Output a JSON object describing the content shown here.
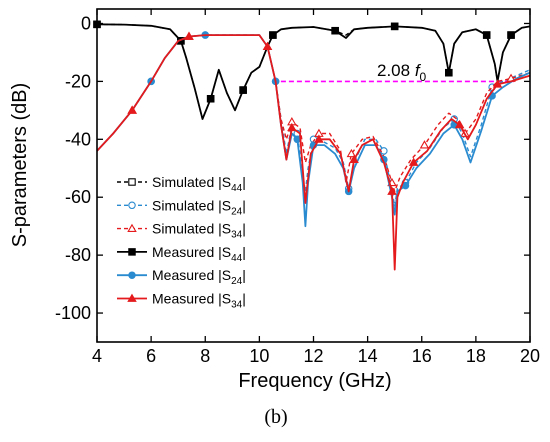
{
  "chart_data": {
    "type": "line",
    "xlabel": "Frequency (GHz)",
    "ylabel": "S-parameters (dB)",
    "xlim": [
      4,
      20
    ],
    "ylim": [
      -110,
      5
    ],
    "xticks": [
      4,
      6,
      8,
      10,
      12,
      14,
      16,
      18,
      20
    ],
    "yticks": [
      0,
      -20,
      -40,
      -60,
      -80,
      -100
    ],
    "xtick_labels": [
      "4",
      "6",
      "8",
      "10",
      "12",
      "14",
      "16",
      "18",
      "20"
    ],
    "ytick_labels": [
      "0",
      "-20",
      "-40",
      "-60",
      "-80",
      "-100"
    ],
    "caption": "(b)",
    "grid": false,
    "legend_position": "left",
    "annotation": {
      "text": "2.08",
      "symbol": "f",
      "subscript": "0",
      "y": -20,
      "x_start": 10.5,
      "x_end": 19.4,
      "color": "#ff00ff"
    },
    "series": [
      {
        "name": "Simulated |S44|",
        "legend_main": "Simulated |S",
        "legend_sub": "44",
        "legend_end": "|",
        "color": "#000000",
        "dash": "4,3",
        "marker": "square-open",
        "x": [
          4,
          5,
          6,
          6.7,
          7.1,
          7.3,
          7.6,
          7.9,
          8.2,
          8.5,
          8.8,
          9.1,
          9.4,
          9.7,
          10.0,
          10.3,
          10.5,
          10.8,
          11.2,
          12,
          12.8,
          13.2,
          13.5,
          14,
          15,
          16,
          16.5,
          16.8,
          17.0,
          17.2,
          17.5,
          18,
          18.4,
          18.7,
          18.8,
          19.0,
          19.3,
          19.7,
          20
        ],
        "y": [
          -0.3,
          -0.4,
          -0.8,
          -2,
          -6,
          -12,
          -22,
          -33,
          -26,
          -16,
          -24,
          -30,
          -23,
          -17,
          -15,
          -8,
          -4,
          -2,
          -1.5,
          -1.2,
          -2.5,
          -4,
          -2,
          -1.5,
          -1,
          -1.5,
          -2.5,
          -7,
          -17,
          -7,
          -3,
          -2,
          -4,
          -14,
          -20,
          -10,
          -4,
          -1.5,
          -1
        ]
      },
      {
        "name": "Simulated |S24|",
        "legend_main": "Simulated |S",
        "legend_sub": "24",
        "legend_end": "|",
        "color": "#2a8bd0",
        "dash": "4,3",
        "marker": "circle-open",
        "x": [
          4,
          4.6,
          5.3,
          6,
          6.5,
          7,
          7.4,
          8,
          9,
          10,
          10.3,
          10.6,
          10.8,
          11.0,
          11.2,
          11.4,
          11.6,
          11.7,
          11.8,
          12.0,
          12.4,
          12.8,
          13.1,
          13.3,
          13.5,
          13.9,
          14.3,
          14.6,
          14.9,
          15.0,
          15.1,
          15.4,
          15.8,
          16.3,
          16.8,
          17.2,
          17.5,
          17.8,
          18.2,
          18.6,
          19.0,
          19.5,
          20
        ],
        "y": [
          -44,
          -38,
          -30,
          -20,
          -12,
          -6,
          -4.5,
          -4,
          -4,
          -4,
          -8,
          -20,
          -33,
          -45,
          -35,
          -38,
          -52,
          -58,
          -50,
          -40,
          -41,
          -43,
          -48,
          -57,
          -48,
          -40,
          -40,
          -44,
          -58,
          -63,
          -57,
          -55,
          -48,
          -43,
          -36,
          -33,
          -38,
          -46,
          -35,
          -22,
          -20,
          -18,
          -16
        ]
      },
      {
        "name": "Simulated |S34|",
        "legend_main": "Simulated |S",
        "legend_sub": "34",
        "legend_end": "|",
        "color": "#e41a1c",
        "dash": "4,3",
        "marker": "triangle-open",
        "x": [
          4,
          4.6,
          5.3,
          6,
          6.5,
          7,
          7.4,
          8,
          9,
          10,
          10.3,
          10.6,
          10.8,
          11.0,
          11.2,
          11.5,
          11.7,
          11.9,
          12.2,
          12.6,
          13.0,
          13.2,
          13.4,
          13.8,
          14.2,
          14.6,
          14.9,
          15.0,
          15.2,
          15.6,
          16.1,
          16.6,
          17.0,
          17.3,
          17.6,
          18.0,
          18.4,
          18.8,
          19.3,
          20
        ],
        "y": [
          -44,
          -38,
          -30,
          -20,
          -12,
          -6,
          -4.5,
          -4,
          -4,
          -4,
          -8,
          -20,
          -33,
          -40,
          -34,
          -36,
          -48,
          -42,
          -38,
          -38,
          -44,
          -55,
          -45,
          -40,
          -39,
          -46,
          -55,
          -58,
          -53,
          -47,
          -42,
          -35,
          -31,
          -33,
          -38,
          -33,
          -24,
          -20,
          -19,
          -17
        ]
      },
      {
        "name": "Measured |S44|",
        "legend_main": "Measured |S",
        "legend_sub": "44",
        "legend_end": "|",
        "color": "#000000",
        "dash": "",
        "marker": "square-filled",
        "x": [
          4,
          5,
          6,
          6.7,
          7.1,
          7.3,
          7.6,
          7.9,
          8.2,
          8.5,
          8.8,
          9.1,
          9.4,
          9.7,
          10.0,
          10.3,
          10.5,
          10.8,
          11.2,
          12,
          12.8,
          13.2,
          13.5,
          14,
          15,
          16,
          16.5,
          16.8,
          17.0,
          17.2,
          17.5,
          18,
          18.4,
          18.7,
          18.8,
          19.0,
          19.3,
          19.7,
          20
        ],
        "y": [
          -0.3,
          -0.4,
          -0.8,
          -2,
          -6,
          -12,
          -22,
          -33,
          -26,
          -16,
          -24,
          -30,
          -23,
          -17,
          -15,
          -8,
          -4,
          -2,
          -1.5,
          -1.2,
          -2.5,
          -5,
          -2,
          -1.5,
          -1,
          -1.5,
          -2.5,
          -7,
          -17,
          -7,
          -3,
          -2,
          -4,
          -14,
          -20,
          -10,
          -4,
          -1.5,
          -1
        ]
      },
      {
        "name": "Measured |S24|",
        "legend_main": "Measured |S",
        "legend_sub": "24",
        "legend_end": "|",
        "color": "#2a8bd0",
        "dash": "",
        "marker": "circle-filled",
        "x": [
          4,
          4.6,
          5.3,
          6,
          6.5,
          7,
          7.4,
          8,
          9,
          10,
          10.3,
          10.6,
          10.8,
          11.0,
          11.2,
          11.4,
          11.6,
          11.7,
          11.8,
          12.0,
          12.4,
          12.8,
          13.1,
          13.3,
          13.5,
          13.9,
          14.3,
          14.6,
          14.9,
          15.0,
          15.1,
          15.4,
          15.8,
          16.3,
          16.8,
          17.2,
          17.5,
          17.8,
          18.2,
          18.6,
          19.0,
          19.5,
          20
        ],
        "y": [
          -44,
          -38,
          -30,
          -20,
          -12,
          -6,
          -4.5,
          -4,
          -4,
          -4,
          -8,
          -20,
          -35,
          -47,
          -38,
          -40,
          -55,
          -70,
          -55,
          -42,
          -42,
          -45,
          -50,
          -58,
          -50,
          -42,
          -42,
          -47,
          -60,
          -66,
          -58,
          -56,
          -50,
          -45,
          -38,
          -35,
          -40,
          -48,
          -37,
          -25,
          -22,
          -19,
          -17
        ]
      },
      {
        "name": "Measured |S34|",
        "legend_main": "Measured |S",
        "legend_sub": "34",
        "legend_end": "|",
        "color": "#e41a1c",
        "dash": "",
        "marker": "triangle-filled",
        "x": [
          4,
          4.6,
          5.3,
          6,
          6.5,
          7,
          7.4,
          8,
          9,
          10,
          10.3,
          10.6,
          10.8,
          11.0,
          11.2,
          11.5,
          11.7,
          11.9,
          12.2,
          12.6,
          13.0,
          13.3,
          13.5,
          13.8,
          14.2,
          14.6,
          14.9,
          15.0,
          15.1,
          15.3,
          15.7,
          16.2,
          16.7,
          17.1,
          17.4,
          17.7,
          18.0,
          18.4,
          18.8,
          19.3,
          20
        ],
        "y": [
          -44,
          -38,
          -30,
          -20,
          -12,
          -6,
          -4.5,
          -4,
          -4,
          -4,
          -8,
          -20,
          -35,
          -47,
          -36,
          -38,
          -62,
          -45,
          -40,
          -40,
          -45,
          -58,
          -47,
          -42,
          -40,
          -48,
          -58,
          -85,
          -60,
          -55,
          -48,
          -44,
          -37,
          -33,
          -35,
          -40,
          -35,
          -26,
          -21,
          -20,
          -18
        ]
      }
    ]
  }
}
